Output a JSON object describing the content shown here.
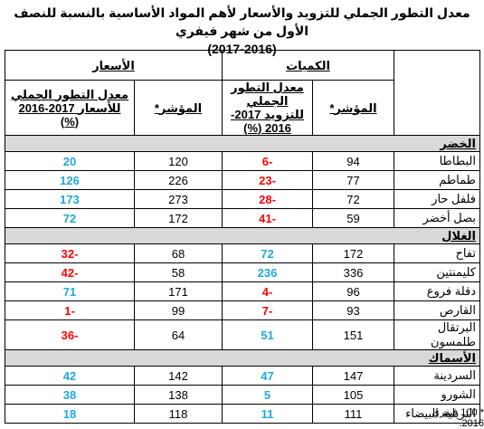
{
  "title": "معدل التطور الجملي للتزويد والأسعار لأهم المواد الأساسية بالنسبة للنصف الأول من شهر فيفري",
  "subtitle": "(2017-2016)",
  "header": {
    "quantities": "الكميات",
    "prices": "الأسعار",
    "index": "المؤشر*",
    "qty_change": "معدل التطور الجملي للتزويد 2017-2016 (%)",
    "price_change": "معدل التطور الجملي للأسعار 2017-2016 (%)"
  },
  "sections": [
    {
      "name": "الخضر",
      "rows": [
        [
          "البطاطا",
          94,
          -6,
          120,
          20
        ],
        [
          "طماطم",
          77,
          -23,
          226,
          126
        ],
        [
          "فلفل حار",
          72,
          -28,
          273,
          173
        ],
        [
          "بصل أخضر",
          59,
          -41,
          172,
          72
        ]
      ]
    },
    {
      "name": "الغلال",
      "rows": [
        [
          "تفاح",
          172,
          72,
          68,
          -32
        ],
        [
          "كليمنتين",
          336,
          236,
          58,
          -42
        ],
        [
          "دقلة فروع",
          96,
          -4,
          171,
          71
        ],
        [
          "القارص",
          93,
          -7,
          99,
          -1
        ],
        [
          "البرتقال طلمسون",
          151,
          51,
          64,
          -36
        ]
      ]
    },
    {
      "name": "الأسماك",
      "rows": [
        [
          "السردينة",
          147,
          47,
          142,
          42
        ],
        [
          "الشورو",
          105,
          5,
          138,
          38
        ],
        [
          "التريلية البيضاء",
          111,
          11,
          118,
          18
        ]
      ]
    }
  ],
  "footnote": "* 100 فيفري 2016."
}
